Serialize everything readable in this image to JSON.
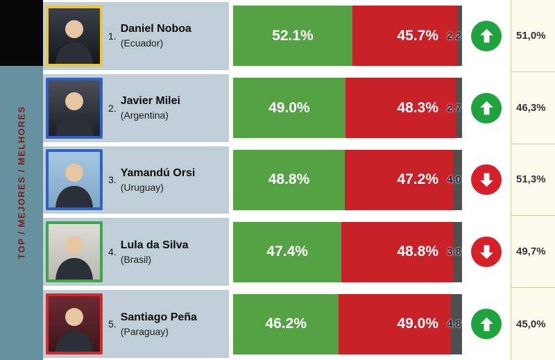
{
  "sidebar": {
    "label": "TOP / MEJORES / MELHORES",
    "band_color": "#65929e",
    "label_color": "#7c1d1d"
  },
  "colors": {
    "bar_green": "#55a245",
    "bar_red": "#c92128",
    "bar_gray": "#4f4f4f",
    "trend_up_circle": "#1fa33c",
    "trend_down_circle": "#d5202a",
    "panel_bg": "#c0cfd7",
    "prev_column_bg": "#fcfcef",
    "prev_column_border": "#c6cc9e"
  },
  "rows": [
    {
      "rank": "1.",
      "name": "Daniel Noboa",
      "country": "(Ecuador)",
      "approve": 52.1,
      "approve_label": "52.1%",
      "disapprove": 45.7,
      "disapprove_label": "45.7%",
      "rest": 2.2,
      "rest_label": "2.2",
      "trend": "up",
      "previous_label": "51,0%",
      "frame_color": "#e9c63c",
      "photo_top": "#3a3f4a",
      "photo_bottom": "#15171d"
    },
    {
      "rank": "2.",
      "name": "Javier Milei",
      "country": "(Argentina)",
      "approve": 49.0,
      "approve_label": "49.0%",
      "disapprove": 48.3,
      "disapprove_label": "48.3%",
      "rest": 2.7,
      "rest_label": "2.7",
      "trend": "up",
      "previous_label": "46,3%",
      "frame_color": "#2e62c8",
      "photo_top": "#4a4f57",
      "photo_bottom": "#1d2026"
    },
    {
      "rank": "3.",
      "name": "Yamandú Orsi",
      "country": "(Uruguay)",
      "approve": 48.8,
      "approve_label": "48.8%",
      "disapprove": 47.2,
      "disapprove_label": "47.2%",
      "rest": 4.0,
      "rest_label": "4.0",
      "trend": "down",
      "previous_label": "51,3%",
      "frame_color": "#2e62c8",
      "photo_top": "#a8c8e2",
      "photo_bottom": "#7ea6c6"
    },
    {
      "rank": "4.",
      "name": "Lula da Silva",
      "country": "(Brasil)",
      "approve": 47.4,
      "approve_label": "47.4%",
      "disapprove": 48.8,
      "disapprove_label": "48.8%",
      "rest": 3.8,
      "rest_label": "3.8",
      "trend": "down",
      "previous_label": "49,7%",
      "frame_color": "#3ea54b",
      "photo_top": "#dddcd6",
      "photo_bottom": "#b9b9b2"
    },
    {
      "rank": "5.",
      "name": "Santiago Peña",
      "country": "(Paraguay)",
      "approve": 46.2,
      "approve_label": "46.2%",
      "disapprove": 49.0,
      "disapprove_label": "49.0%",
      "rest": 4.8,
      "rest_label": "4.8",
      "trend": "up",
      "previous_label": "45,0%",
      "frame_color": "#d22b2b",
      "photo_top": "#6d2a33",
      "photo_bottom": "#3c151b"
    }
  ],
  "chart_data": {
    "type": "bar",
    "stacked": true,
    "orientation": "horizontal",
    "title": "TOP / MEJORES / MELHORES",
    "categories": [
      "Daniel Noboa (Ecuador)",
      "Javier Milei (Argentina)",
      "Yamandú Orsi (Uruguay)",
      "Lula da Silva (Brasil)",
      "Santiago Peña (Paraguay)"
    ],
    "series": [
      {
        "name": "approval_green",
        "values": [
          52.1,
          49.0,
          48.8,
          47.4,
          46.2
        ]
      },
      {
        "name": "disapproval_red",
        "values": [
          45.7,
          48.3,
          47.2,
          48.8,
          49.0
        ]
      },
      {
        "name": "no_answer_gray",
        "values": [
          2.2,
          2.7,
          4.0,
          3.8,
          4.8
        ]
      }
    ],
    "trend_arrows": [
      "up",
      "up",
      "down",
      "down",
      "up"
    ],
    "previous_column_values": [
      "51,0%",
      "46,3%",
      "51,3%",
      "49,7%",
      "45,0%"
    ],
    "xlim": [
      0,
      100
    ],
    "grid": false,
    "legend": false
  }
}
